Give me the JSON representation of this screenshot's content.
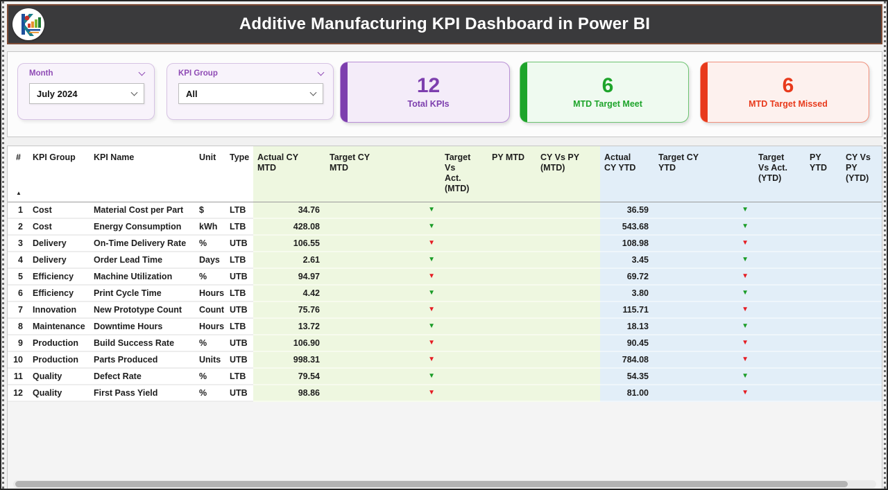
{
  "header": {
    "title": "Additive Manufacturing KPI Dashboard in Power BI",
    "logo_name": "company-logo"
  },
  "filters": {
    "month": {
      "label": "Month",
      "value": "July 2024"
    },
    "kpi_group": {
      "label": "KPI Group",
      "value": "All"
    }
  },
  "kpi_cards": [
    {
      "value": "12",
      "label": "Total KPIs",
      "color": "#7d3fae"
    },
    {
      "value": "6",
      "label": "MTD Target Meet",
      "color": "#1ea42b"
    },
    {
      "value": "6",
      "label": "MTD Target Missed",
      "color": "#e83a1c"
    }
  ],
  "icons": {
    "trend_down": "▼",
    "sort_ascending": "▲"
  },
  "status_colors": {
    "meet": "#1a9c27",
    "missed": "#e51c23"
  },
  "table": {
    "headers": [
      "#",
      "KPI Group",
      "KPI Name",
      "Unit",
      "Type",
      "Actual CY\nMTD",
      "Target CY\nMTD",
      "Target Vs\nAct.\n(MTD)",
      "PY MTD",
      "CY Vs PY\n(MTD)",
      "Actual\nCY YTD",
      "Target CY\nYTD",
      "Target\nVs Act.\n(YTD)",
      "PY YTD",
      "CY Vs\nPY\n(YTD)"
    ],
    "rows": [
      {
        "num": "1",
        "group": "Cost",
        "name": "Material Cost per Part",
        "unit": "$",
        "type": "LTB",
        "actual_cy_mtd": "34.76",
        "mtd_status": "meet",
        "actual_cy_ytd": "36.59",
        "ytd_status": "meet"
      },
      {
        "num": "2",
        "group": "Cost",
        "name": "Energy Consumption",
        "unit": "kWh",
        "type": "LTB",
        "actual_cy_mtd": "428.08",
        "mtd_status": "meet",
        "actual_cy_ytd": "543.68",
        "ytd_status": "meet"
      },
      {
        "num": "3",
        "group": "Delivery",
        "name": "On-Time Delivery Rate",
        "unit": "%",
        "type": "UTB",
        "actual_cy_mtd": "106.55",
        "mtd_status": "missed",
        "actual_cy_ytd": "108.98",
        "ytd_status": "missed"
      },
      {
        "num": "4",
        "group": "Delivery",
        "name": "Order Lead Time",
        "unit": "Days",
        "type": "LTB",
        "actual_cy_mtd": "2.61",
        "mtd_status": "meet",
        "actual_cy_ytd": "3.45",
        "ytd_status": "meet"
      },
      {
        "num": "5",
        "group": "Efficiency",
        "name": "Machine Utilization",
        "unit": "%",
        "type": "UTB",
        "actual_cy_mtd": "94.97",
        "mtd_status": "missed",
        "actual_cy_ytd": "69.72",
        "ytd_status": "missed"
      },
      {
        "num": "6",
        "group": "Efficiency",
        "name": "Print Cycle Time",
        "unit": "Hours",
        "type": "LTB",
        "actual_cy_mtd": "4.42",
        "mtd_status": "meet",
        "actual_cy_ytd": "3.80",
        "ytd_status": "meet"
      },
      {
        "num": "7",
        "group": "Innovation",
        "name": "New Prototype Count",
        "unit": "Count",
        "type": "UTB",
        "actual_cy_mtd": "75.76",
        "mtd_status": "missed",
        "actual_cy_ytd": "115.71",
        "ytd_status": "missed"
      },
      {
        "num": "8",
        "group": "Maintenance",
        "name": "Downtime Hours",
        "unit": "Hours",
        "type": "LTB",
        "actual_cy_mtd": "13.72",
        "mtd_status": "meet",
        "actual_cy_ytd": "18.13",
        "ytd_status": "meet"
      },
      {
        "num": "9",
        "group": "Production",
        "name": "Build Success Rate",
        "unit": "%",
        "type": "UTB",
        "actual_cy_mtd": "106.90",
        "mtd_status": "missed",
        "actual_cy_ytd": "90.45",
        "ytd_status": "missed"
      },
      {
        "num": "10",
        "group": "Production",
        "name": "Parts Produced",
        "unit": "Units",
        "type": "UTB",
        "actual_cy_mtd": "998.31",
        "mtd_status": "missed",
        "actual_cy_ytd": "784.08",
        "ytd_status": "missed"
      },
      {
        "num": "11",
        "group": "Quality",
        "name": "Defect Rate",
        "unit": "%",
        "type": "LTB",
        "actual_cy_mtd": "79.54",
        "mtd_status": "meet",
        "actual_cy_ytd": "54.35",
        "ytd_status": "meet"
      },
      {
        "num": "12",
        "group": "Quality",
        "name": "First Pass Yield",
        "unit": "%",
        "type": "UTB",
        "actual_cy_mtd": "98.86",
        "mtd_status": "missed",
        "actual_cy_ytd": "81.00",
        "ytd_status": "missed"
      }
    ]
  }
}
